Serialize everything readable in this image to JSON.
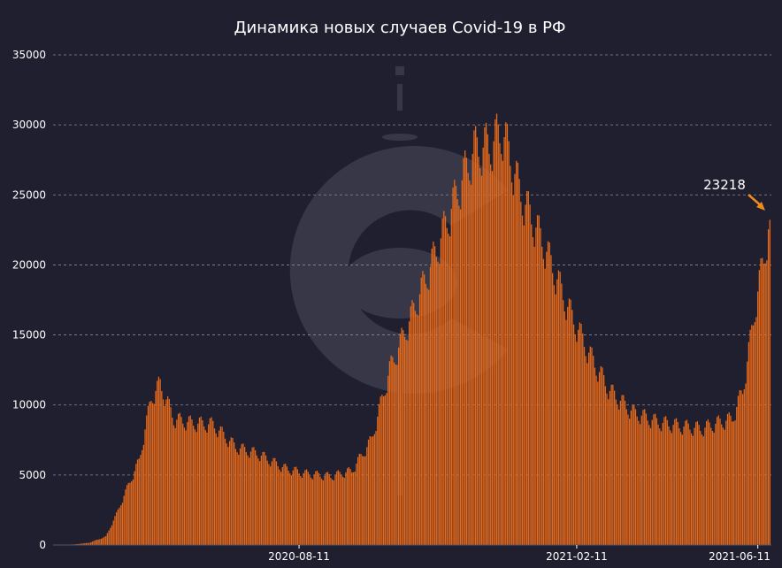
{
  "chart_data": {
    "type": "bar",
    "title": "Динамика новых случаев Covid-19 в РФ",
    "xlabel": "",
    "ylabel": "",
    "ylim": [
      0,
      35000
    ],
    "y_ticks": [
      "0",
      "5000",
      "10000",
      "15000",
      "20000",
      "25000",
      "30000",
      "35000"
    ],
    "x_ticks": [
      {
        "date": "2020-08-11",
        "label": "2020-08-11"
      },
      {
        "date": "2021-02-11",
        "label": "2021-02-11"
      },
      {
        "date": "2021-06-11",
        "label": "2021-06-11"
      }
    ],
    "x_range": [
      "2020-03-01",
      "2021-06-20"
    ],
    "grid": true,
    "bar_color": "#e86a1a",
    "anchors": [
      [
        "2020-03-01",
        5
      ],
      [
        "2020-03-15",
        40
      ],
      [
        "2020-03-25",
        160
      ],
      [
        "2020-04-05",
        600
      ],
      [
        "2020-04-12",
        2200
      ],
      [
        "2020-04-20",
        4300
      ],
      [
        "2020-04-27",
        6000
      ],
      [
        "2020-05-05",
        10500
      ],
      [
        "2020-05-11",
        11500
      ],
      [
        "2020-05-20",
        9000
      ],
      [
        "2020-06-01",
        8700
      ],
      [
        "2020-06-15",
        8600
      ],
      [
        "2020-06-30",
        7000
      ],
      [
        "2020-07-15",
        6500
      ],
      [
        "2020-08-01",
        5500
      ],
      [
        "2020-08-15",
        5100
      ],
      [
        "2020-09-01",
        4900
      ],
      [
        "2020-09-15",
        5300
      ],
      [
        "2020-09-28",
        7500
      ],
      [
        "2020-10-10",
        12500
      ],
      [
        "2020-10-25",
        16500
      ],
      [
        "2020-11-10",
        21000
      ],
      [
        "2020-11-25",
        25500
      ],
      [
        "2020-12-05",
        28200
      ],
      [
        "2020-12-15",
        28500
      ],
      [
        "2020-12-24",
        29500
      ],
      [
        "2021-01-05",
        25000
      ],
      [
        "2021-01-20",
        21500
      ],
      [
        "2021-02-05",
        17000
      ],
      [
        "2021-02-20",
        13500
      ],
      [
        "2021-03-05",
        11000
      ],
      [
        "2021-03-20",
        9500
      ],
      [
        "2021-04-05",
        8800
      ],
      [
        "2021-04-20",
        8500
      ],
      [
        "2021-05-05",
        8300
      ],
      [
        "2021-05-15",
        8700
      ],
      [
        "2021-05-25",
        9000
      ],
      [
        "2021-06-01",
        11000
      ],
      [
        "2021-06-06",
        14500
      ],
      [
        "2021-06-10",
        17500
      ],
      [
        "2021-06-15",
        20500
      ],
      [
        "2021-06-19",
        23218
      ]
    ],
    "annotation": {
      "label": "23218",
      "date": "2021-06-19",
      "value": 23218
    }
  }
}
